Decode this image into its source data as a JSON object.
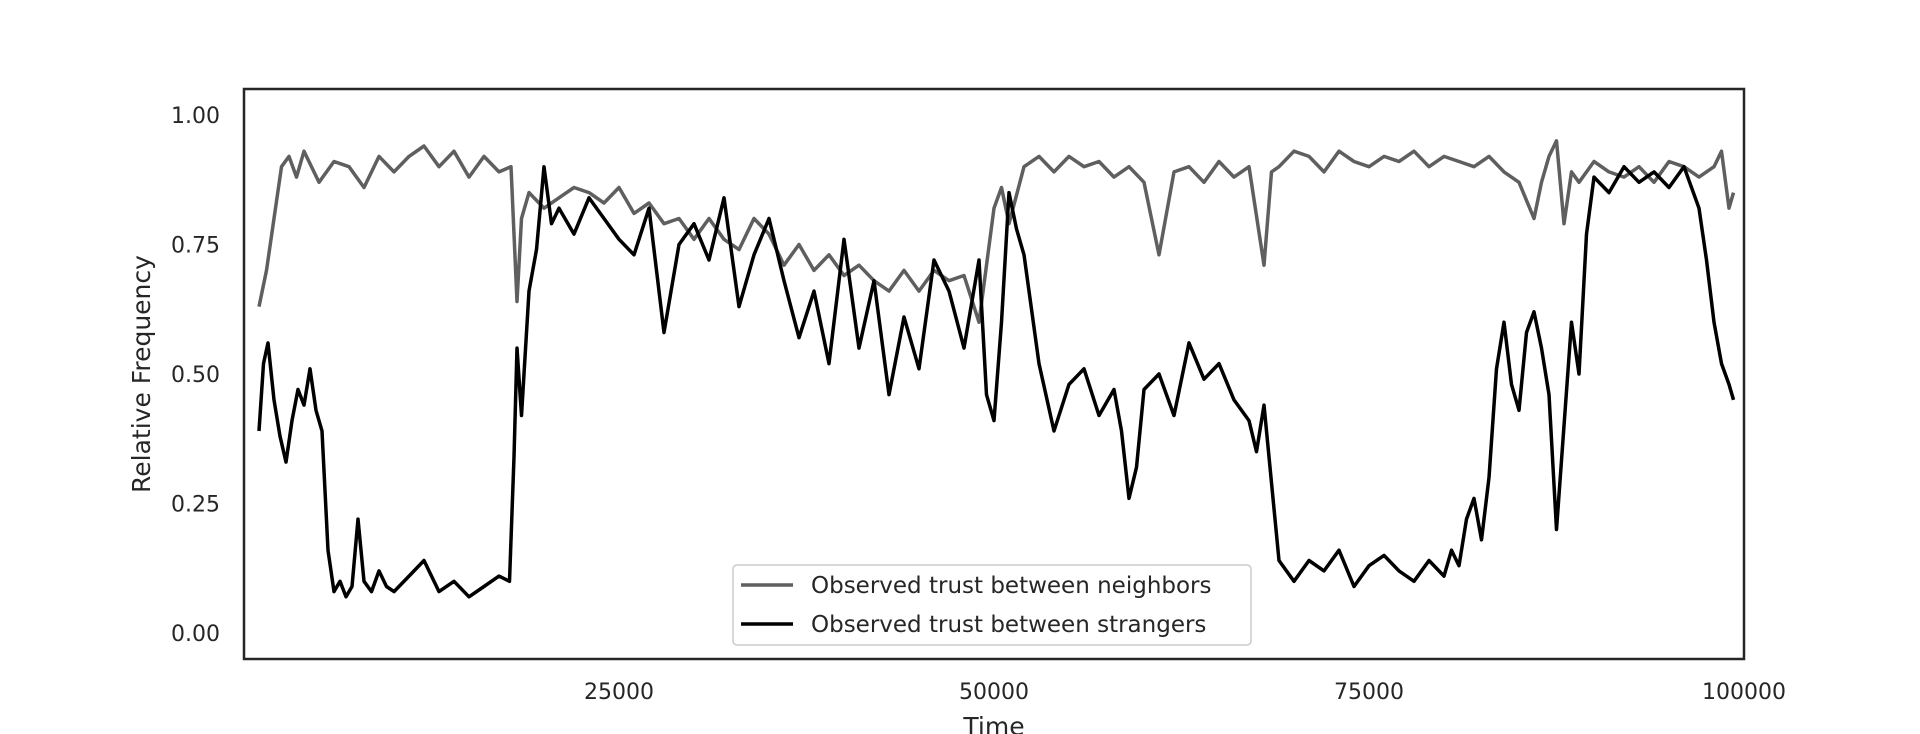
{
  "chart_data": {
    "type": "line",
    "title": "",
    "xlabel": "Time",
    "ylabel": "Relative Frequency",
    "xlim": [
      0,
      100000
    ],
    "ylim": [
      -0.05,
      1.05
    ],
    "xticks": [
      25000,
      50000,
      75000,
      100000
    ],
    "xtick_labels": [
      "25000",
      "50000",
      "75000",
      "100000"
    ],
    "yticks": [
      0.0,
      0.25,
      0.5,
      0.75,
      1.0
    ],
    "ytick_labels": [
      "0.00",
      "0.25",
      "0.50",
      "0.75",
      "1.00"
    ],
    "grid": false,
    "legend_position": "lower-center",
    "series": [
      {
        "name": "Observed trust between neighbors",
        "color": "#5f5f5f",
        "x": [
          1000,
          1500,
          2000,
          2500,
          3000,
          3500,
          4000,
          5000,
          6000,
          7000,
          8000,
          9000,
          10000,
          11000,
          12000,
          13000,
          14000,
          15000,
          16000,
          17000,
          17800,
          18200,
          18500,
          19000,
          20000,
          21000,
          22000,
          23000,
          24000,
          25000,
          26000,
          27000,
          28000,
          29000,
          30000,
          31000,
          32000,
          33000,
          34000,
          35000,
          36000,
          37000,
          38000,
          39000,
          40000,
          41000,
          42000,
          43000,
          44000,
          45000,
          46000,
          47000,
          48000,
          49000,
          50000,
          50500,
          51000,
          52000,
          53000,
          54000,
          55000,
          56000,
          57000,
          58000,
          59000,
          60000,
          61000,
          62000,
          63000,
          64000,
          65000,
          66000,
          67000,
          68000,
          68500,
          69000,
          70000,
          71000,
          72000,
          73000,
          74000,
          75000,
          76000,
          77000,
          78000,
          79000,
          80000,
          81000,
          82000,
          83000,
          84000,
          85000,
          86000,
          86500,
          87000,
          87500,
          88000,
          88500,
          89000,
          90000,
          91000,
          92000,
          93000,
          94000,
          95000,
          96000,
          97000,
          98000,
          98500,
          99000,
          99300
        ],
        "y": [
          0.63,
          0.7,
          0.8,
          0.9,
          0.92,
          0.88,
          0.93,
          0.87,
          0.91,
          0.9,
          0.86,
          0.92,
          0.89,
          0.92,
          0.94,
          0.9,
          0.93,
          0.88,
          0.92,
          0.89,
          0.9,
          0.64,
          0.8,
          0.85,
          0.82,
          0.84,
          0.86,
          0.85,
          0.83,
          0.86,
          0.81,
          0.83,
          0.79,
          0.8,
          0.76,
          0.8,
          0.76,
          0.74,
          0.8,
          0.77,
          0.71,
          0.75,
          0.7,
          0.73,
          0.69,
          0.71,
          0.68,
          0.66,
          0.7,
          0.66,
          0.7,
          0.68,
          0.69,
          0.6,
          0.82,
          0.86,
          0.79,
          0.9,
          0.92,
          0.89,
          0.92,
          0.9,
          0.91,
          0.88,
          0.9,
          0.87,
          0.73,
          0.89,
          0.9,
          0.87,
          0.91,
          0.88,
          0.9,
          0.71,
          0.89,
          0.9,
          0.93,
          0.92,
          0.89,
          0.93,
          0.91,
          0.9,
          0.92,
          0.91,
          0.93,
          0.9,
          0.92,
          0.91,
          0.9,
          0.92,
          0.89,
          0.87,
          0.8,
          0.87,
          0.92,
          0.95,
          0.79,
          0.89,
          0.87,
          0.91,
          0.89,
          0.88,
          0.9,
          0.87,
          0.91,
          0.9,
          0.88,
          0.9,
          0.93,
          0.82,
          0.85
        ]
      },
      {
        "name": "Observed trust between strangers",
        "color": "#000000",
        "x": [
          1000,
          1300,
          1600,
          2000,
          2400,
          2800,
          3200,
          3600,
          4000,
          4400,
          4800,
          5200,
          5600,
          6000,
          6400,
          6800,
          7200,
          7600,
          8000,
          8500,
          9000,
          9500,
          10000,
          11000,
          12000,
          13000,
          14000,
          15000,
          16000,
          17000,
          17700,
          18000,
          18200,
          18500,
          19000,
          19500,
          20000,
          20500,
          21000,
          22000,
          23000,
          24000,
          25000,
          26000,
          27000,
          28000,
          29000,
          30000,
          31000,
          32000,
          33000,
          34000,
          35000,
          36000,
          37000,
          38000,
          39000,
          40000,
          41000,
          42000,
          43000,
          44000,
          45000,
          46000,
          47000,
          48000,
          49000,
          49500,
          50000,
          50500,
          51000,
          51500,
          52000,
          53000,
          54000,
          55000,
          56000,
          57000,
          58000,
          58500,
          59000,
          59500,
          60000,
          61000,
          62000,
          63000,
          64000,
          65000,
          66000,
          67000,
          67500,
          68000,
          68500,
          69000,
          70000,
          71000,
          72000,
          73000,
          74000,
          75000,
          76000,
          77000,
          78000,
          79000,
          80000,
          80500,
          81000,
          81500,
          82000,
          82500,
          83000,
          83500,
          84000,
          84500,
          85000,
          85500,
          86000,
          86500,
          87000,
          87500,
          88000,
          88500,
          89000,
          89500,
          90000,
          91000,
          92000,
          93000,
          94000,
          95000,
          96000,
          97000,
          97500,
          98000,
          98500,
          99000,
          99300
        ],
        "y": [
          0.39,
          0.52,
          0.56,
          0.45,
          0.38,
          0.33,
          0.41,
          0.47,
          0.44,
          0.51,
          0.43,
          0.39,
          0.16,
          0.08,
          0.1,
          0.07,
          0.09,
          0.22,
          0.1,
          0.08,
          0.12,
          0.09,
          0.08,
          0.11,
          0.14,
          0.08,
          0.1,
          0.07,
          0.09,
          0.11,
          0.1,
          0.34,
          0.55,
          0.42,
          0.66,
          0.74,
          0.9,
          0.79,
          0.82,
          0.77,
          0.84,
          0.8,
          0.76,
          0.73,
          0.82,
          0.58,
          0.75,
          0.79,
          0.72,
          0.84,
          0.63,
          0.73,
          0.8,
          0.68,
          0.57,
          0.66,
          0.52,
          0.76,
          0.55,
          0.68,
          0.46,
          0.61,
          0.51,
          0.72,
          0.66,
          0.55,
          0.72,
          0.46,
          0.41,
          0.6,
          0.85,
          0.78,
          0.73,
          0.52,
          0.39,
          0.48,
          0.51,
          0.42,
          0.47,
          0.39,
          0.26,
          0.32,
          0.47,
          0.5,
          0.42,
          0.56,
          0.49,
          0.52,
          0.45,
          0.41,
          0.35,
          0.44,
          0.29,
          0.14,
          0.1,
          0.14,
          0.12,
          0.16,
          0.09,
          0.13,
          0.15,
          0.12,
          0.1,
          0.14,
          0.11,
          0.16,
          0.13,
          0.22,
          0.26,
          0.18,
          0.3,
          0.51,
          0.6,
          0.48,
          0.43,
          0.58,
          0.62,
          0.55,
          0.46,
          0.2,
          0.4,
          0.6,
          0.5,
          0.77,
          0.88,
          0.85,
          0.9,
          0.87,
          0.89,
          0.86,
          0.9,
          0.82,
          0.72,
          0.6,
          0.52,
          0.48,
          0.45
        ]
      }
    ]
  }
}
